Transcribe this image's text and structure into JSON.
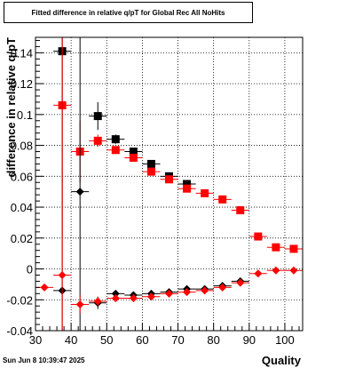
{
  "chart_data": {
    "type": "scatter",
    "title": "Fitted difference in relative q/pT for Global Rec All NoHits",
    "xlabel": "Quality",
    "ylabel": "difference in relative q/pT",
    "xlim": [
      30,
      105
    ],
    "ylim": [
      -0.04,
      0.15
    ],
    "x_ticks": [
      30,
      40,
      50,
      60,
      70,
      80,
      90,
      100
    ],
    "y_ticks": [
      -0.04,
      -0.02,
      0,
      0.02,
      0.04,
      0.06,
      0.08,
      0.1,
      0.12,
      0.14
    ],
    "y_tick_labels": [
      "-0.04",
      "-0.02",
      "0",
      "0.02",
      "0.04",
      "0.06",
      "0.08",
      "0.1",
      "0.12",
      "0.14"
    ],
    "grid": true,
    "series": [
      {
        "marker": "square",
        "color": "#000000",
        "points": [
          {
            "x": 37.5,
            "y": 0.141,
            "xerr": 2.5,
            "yerr": 0.12
          },
          {
            "x": 47.5,
            "y": 0.099,
            "xerr": 2.5,
            "yerr": 0.009
          },
          {
            "x": 52.5,
            "y": 0.084,
            "xerr": 2.5,
            "yerr": 0.003
          },
          {
            "x": 57.5,
            "y": 0.076,
            "xerr": 2.5,
            "yerr": 0.002
          },
          {
            "x": 62.5,
            "y": 0.068,
            "xerr": 2.5,
            "yerr": 0.002
          },
          {
            "x": 67.5,
            "y": 0.06,
            "xerr": 2.5,
            "yerr": 0.002
          },
          {
            "x": 72.5,
            "y": 0.055,
            "xerr": 2.5,
            "yerr": 0.001
          }
        ]
      },
      {
        "marker": "square",
        "color": "#ff0000",
        "points": [
          {
            "x": 37.5,
            "y": 0.106,
            "xerr": 2.5,
            "yerr": 0.2
          },
          {
            "x": 42.5,
            "y": 0.076,
            "xerr": 2.5,
            "yerr": 0.02
          },
          {
            "x": 47.5,
            "y": 0.083,
            "xerr": 2.5,
            "yerr": 0.004
          },
          {
            "x": 52.5,
            "y": 0.077,
            "xerr": 2.5,
            "yerr": 0.002
          },
          {
            "x": 57.5,
            "y": 0.072,
            "xerr": 2.5,
            "yerr": 0.002
          },
          {
            "x": 62.5,
            "y": 0.063,
            "xerr": 2.5,
            "yerr": 0.002
          },
          {
            "x": 67.5,
            "y": 0.058,
            "xerr": 2.5,
            "yerr": 0.001
          },
          {
            "x": 72.5,
            "y": 0.052,
            "xerr": 2.5,
            "yerr": 0.001
          },
          {
            "x": 77.5,
            "y": 0.049,
            "xerr": 2.5,
            "yerr": 0.001
          },
          {
            "x": 82.5,
            "y": 0.045,
            "xerr": 2.5,
            "yerr": 0.001
          },
          {
            "x": 87.5,
            "y": 0.038,
            "xerr": 2.5,
            "yerr": 0.001
          },
          {
            "x": 92.5,
            "y": 0.021,
            "xerr": 2.5,
            "yerr": 0.001
          },
          {
            "x": 97.5,
            "y": 0.014,
            "xerr": 2.5,
            "yerr": 0.001
          },
          {
            "x": 102.5,
            "y": 0.013,
            "xerr": 2.5,
            "yerr": 0.001
          }
        ]
      },
      {
        "marker": "diamond",
        "color": "#000000",
        "points": [
          {
            "x": 37.5,
            "y": -0.014,
            "xerr": 2.5,
            "yerr": 0.2
          },
          {
            "x": 42.5,
            "y": 0.05,
            "xerr": 2.5,
            "yerr": 0.15
          },
          {
            "x": 47.5,
            "y": -0.022,
            "xerr": 2.5,
            "yerr": 0.004
          },
          {
            "x": 52.5,
            "y": -0.016,
            "xerr": 2.5,
            "yerr": 0.002
          },
          {
            "x": 57.5,
            "y": -0.017,
            "xerr": 2.5,
            "yerr": 0.002
          },
          {
            "x": 62.5,
            "y": -0.016,
            "xerr": 2.5,
            "yerr": 0.002
          },
          {
            "x": 67.5,
            "y": -0.015,
            "xerr": 2.5,
            "yerr": 0.001
          },
          {
            "x": 72.5,
            "y": -0.013,
            "xerr": 2.5,
            "yerr": 0.001
          },
          {
            "x": 77.5,
            "y": -0.013,
            "xerr": 2.5,
            "yerr": 0.001
          },
          {
            "x": 82.5,
            "y": -0.011,
            "xerr": 2.5,
            "yerr": 0.001
          },
          {
            "x": 87.5,
            "y": -0.008,
            "xerr": 2.5,
            "yerr": 0.001
          }
        ]
      },
      {
        "marker": "diamond",
        "color": "#ff0000",
        "points": [
          {
            "x": 32.5,
            "y": -0.012,
            "xerr": 2.5,
            "yerr": 0.001
          },
          {
            "x": 37.5,
            "y": -0.004,
            "xerr": 2.5,
            "yerr": 0.2
          },
          {
            "x": 42.5,
            "y": -0.023,
            "xerr": 2.5,
            "yerr": 0.006
          },
          {
            "x": 47.5,
            "y": -0.021,
            "xerr": 2.5,
            "yerr": 0.003
          },
          {
            "x": 52.5,
            "y": -0.019,
            "xerr": 2.5,
            "yerr": 0.002
          },
          {
            "x": 57.5,
            "y": -0.019,
            "xerr": 2.5,
            "yerr": 0.002
          },
          {
            "x": 62.5,
            "y": -0.018,
            "xerr": 2.5,
            "yerr": 0.001
          },
          {
            "x": 67.5,
            "y": -0.016,
            "xerr": 2.5,
            "yerr": 0.001
          },
          {
            "x": 72.5,
            "y": -0.015,
            "xerr": 2.5,
            "yerr": 0.001
          },
          {
            "x": 77.5,
            "y": -0.014,
            "xerr": 2.5,
            "yerr": 0.001
          },
          {
            "x": 82.5,
            "y": -0.012,
            "xerr": 2.5,
            "yerr": 0.001
          },
          {
            "x": 87.5,
            "y": -0.009,
            "xerr": 2.5,
            "yerr": 0.001
          },
          {
            "x": 92.5,
            "y": -0.003,
            "xerr": 2.5,
            "yerr": 0.001
          },
          {
            "x": 97.5,
            "y": -0.001,
            "xerr": 2.5,
            "yerr": 0.001
          },
          {
            "x": 102.5,
            "y": -0.001,
            "xerr": 2.5,
            "yerr": 0.001
          }
        ]
      }
    ]
  },
  "footer": {
    "date": "Sun Jun  8 10:39:47 2025"
  }
}
